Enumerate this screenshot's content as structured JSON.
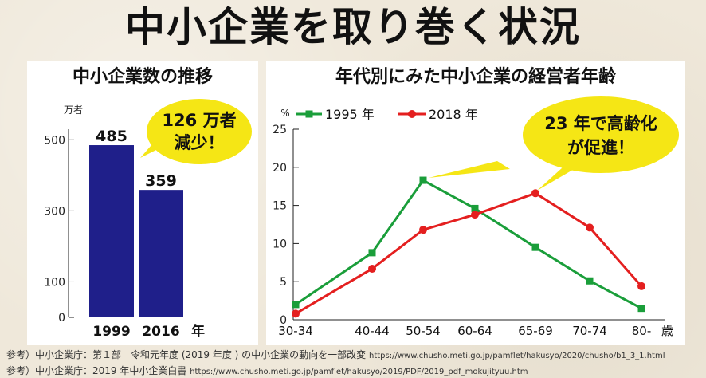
{
  "title": "中小企業を取り巻く状況",
  "left_panel": {
    "title": "中小企業数の推移",
    "unit": "万者",
    "bubble_line1": "126 万者",
    "bubble_line2": "減少！",
    "x_unit": "年"
  },
  "right_panel": {
    "title": "年代別にみた中小企業の経営者年齢",
    "y_unit": "%",
    "x_unit": "歳",
    "bubble_line1": "23 年で高齢化",
    "bubble_line2": "が促進！"
  },
  "colors": {
    "bar": "#1f1f8a",
    "series_1995": "#1a9e3a",
    "series_2018": "#e41f1f",
    "bubble": "#f5e615"
  },
  "chart_data": [
    {
      "type": "bar",
      "title": "中小企業数の推移",
      "categories": [
        "1999",
        "2016"
      ],
      "values": [
        485,
        359
      ],
      "ylabel": "万者",
      "y_ticks": [
        0,
        100,
        300,
        500
      ],
      "ylim": [
        0,
        530
      ],
      "annotation": "126 万者 減少！"
    },
    {
      "type": "line",
      "title": "年代別にみた中小企業の経営者年齢",
      "categories": [
        "30-34",
        "40-44",
        "50-54",
        "60-64",
        "65-69",
        "70-74",
        "80-"
      ],
      "series": [
        {
          "name": "1995 年",
          "values": [
            2.0,
            8.8,
            18.3,
            14.6,
            9.5,
            5.1,
            1.5
          ]
        },
        {
          "name": "2018 年",
          "values": [
            0.8,
            6.7,
            11.8,
            13.8,
            16.6,
            12.1,
            4.4
          ]
        }
      ],
      "ylabel": "%",
      "xlabel": "歳",
      "ylim": [
        0,
        25
      ],
      "y_ticks": [
        0,
        5,
        10,
        15,
        20,
        25
      ],
      "legend": "top-left",
      "annotation": "23 年で高齢化 が促進！"
    }
  ],
  "footnotes": [
    {
      "text": "参考）中小企業庁：第１部　令和元年度 (2019 年度 ) の中小企業の動向を一部改変",
      "url": "https://www.chusho.meti.go.jp/pamflet/hakusyo/2020/chusho/b1_3_1.html"
    },
    {
      "text": "参考）中小企業庁：2019 年中小企業白書",
      "url": "https://www.chusho.meti.go.jp/pamflet/hakusyo/2019/PDF/2019_pdf_mokujityuu.htm"
    }
  ]
}
